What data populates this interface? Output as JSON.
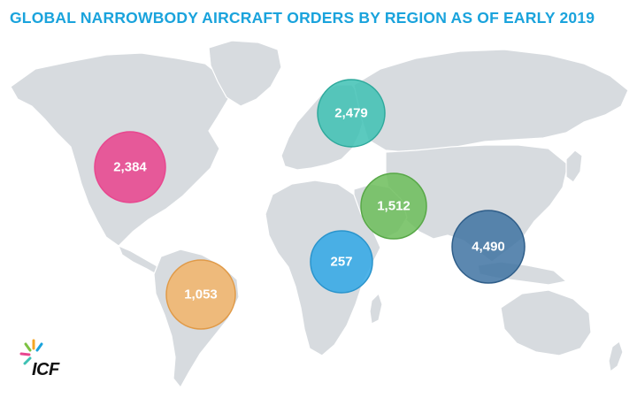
{
  "title": "GLOBAL NARROWBODY AIRCRAFT ORDERS BY REGION AS OF EARLY 2019",
  "logo": {
    "text": "ICF",
    "name": "icf-logo"
  },
  "colors": {
    "title": "#1aa3dc",
    "land": "#d7dbdf",
    "north_america": "#e8478f",
    "europe_russia": "#3ec1b4",
    "middle_east": "#6cbd5a",
    "asia_pacific": "#3f73a2",
    "africa": "#35a9e6",
    "latin_america": "#f2b46a"
  },
  "regions": [
    {
      "key": "north_america",
      "label": "2,384",
      "value": 2384
    },
    {
      "key": "europe_russia",
      "label": "2,479",
      "value": 2479
    },
    {
      "key": "middle_east",
      "label": "1,512",
      "value": 1512
    },
    {
      "key": "asia_pacific",
      "label": "4,490",
      "value": 4490
    },
    {
      "key": "africa",
      "label": "257",
      "value": 257
    },
    {
      "key": "latin_america",
      "label": "1,053",
      "value": 1053
    }
  ]
}
